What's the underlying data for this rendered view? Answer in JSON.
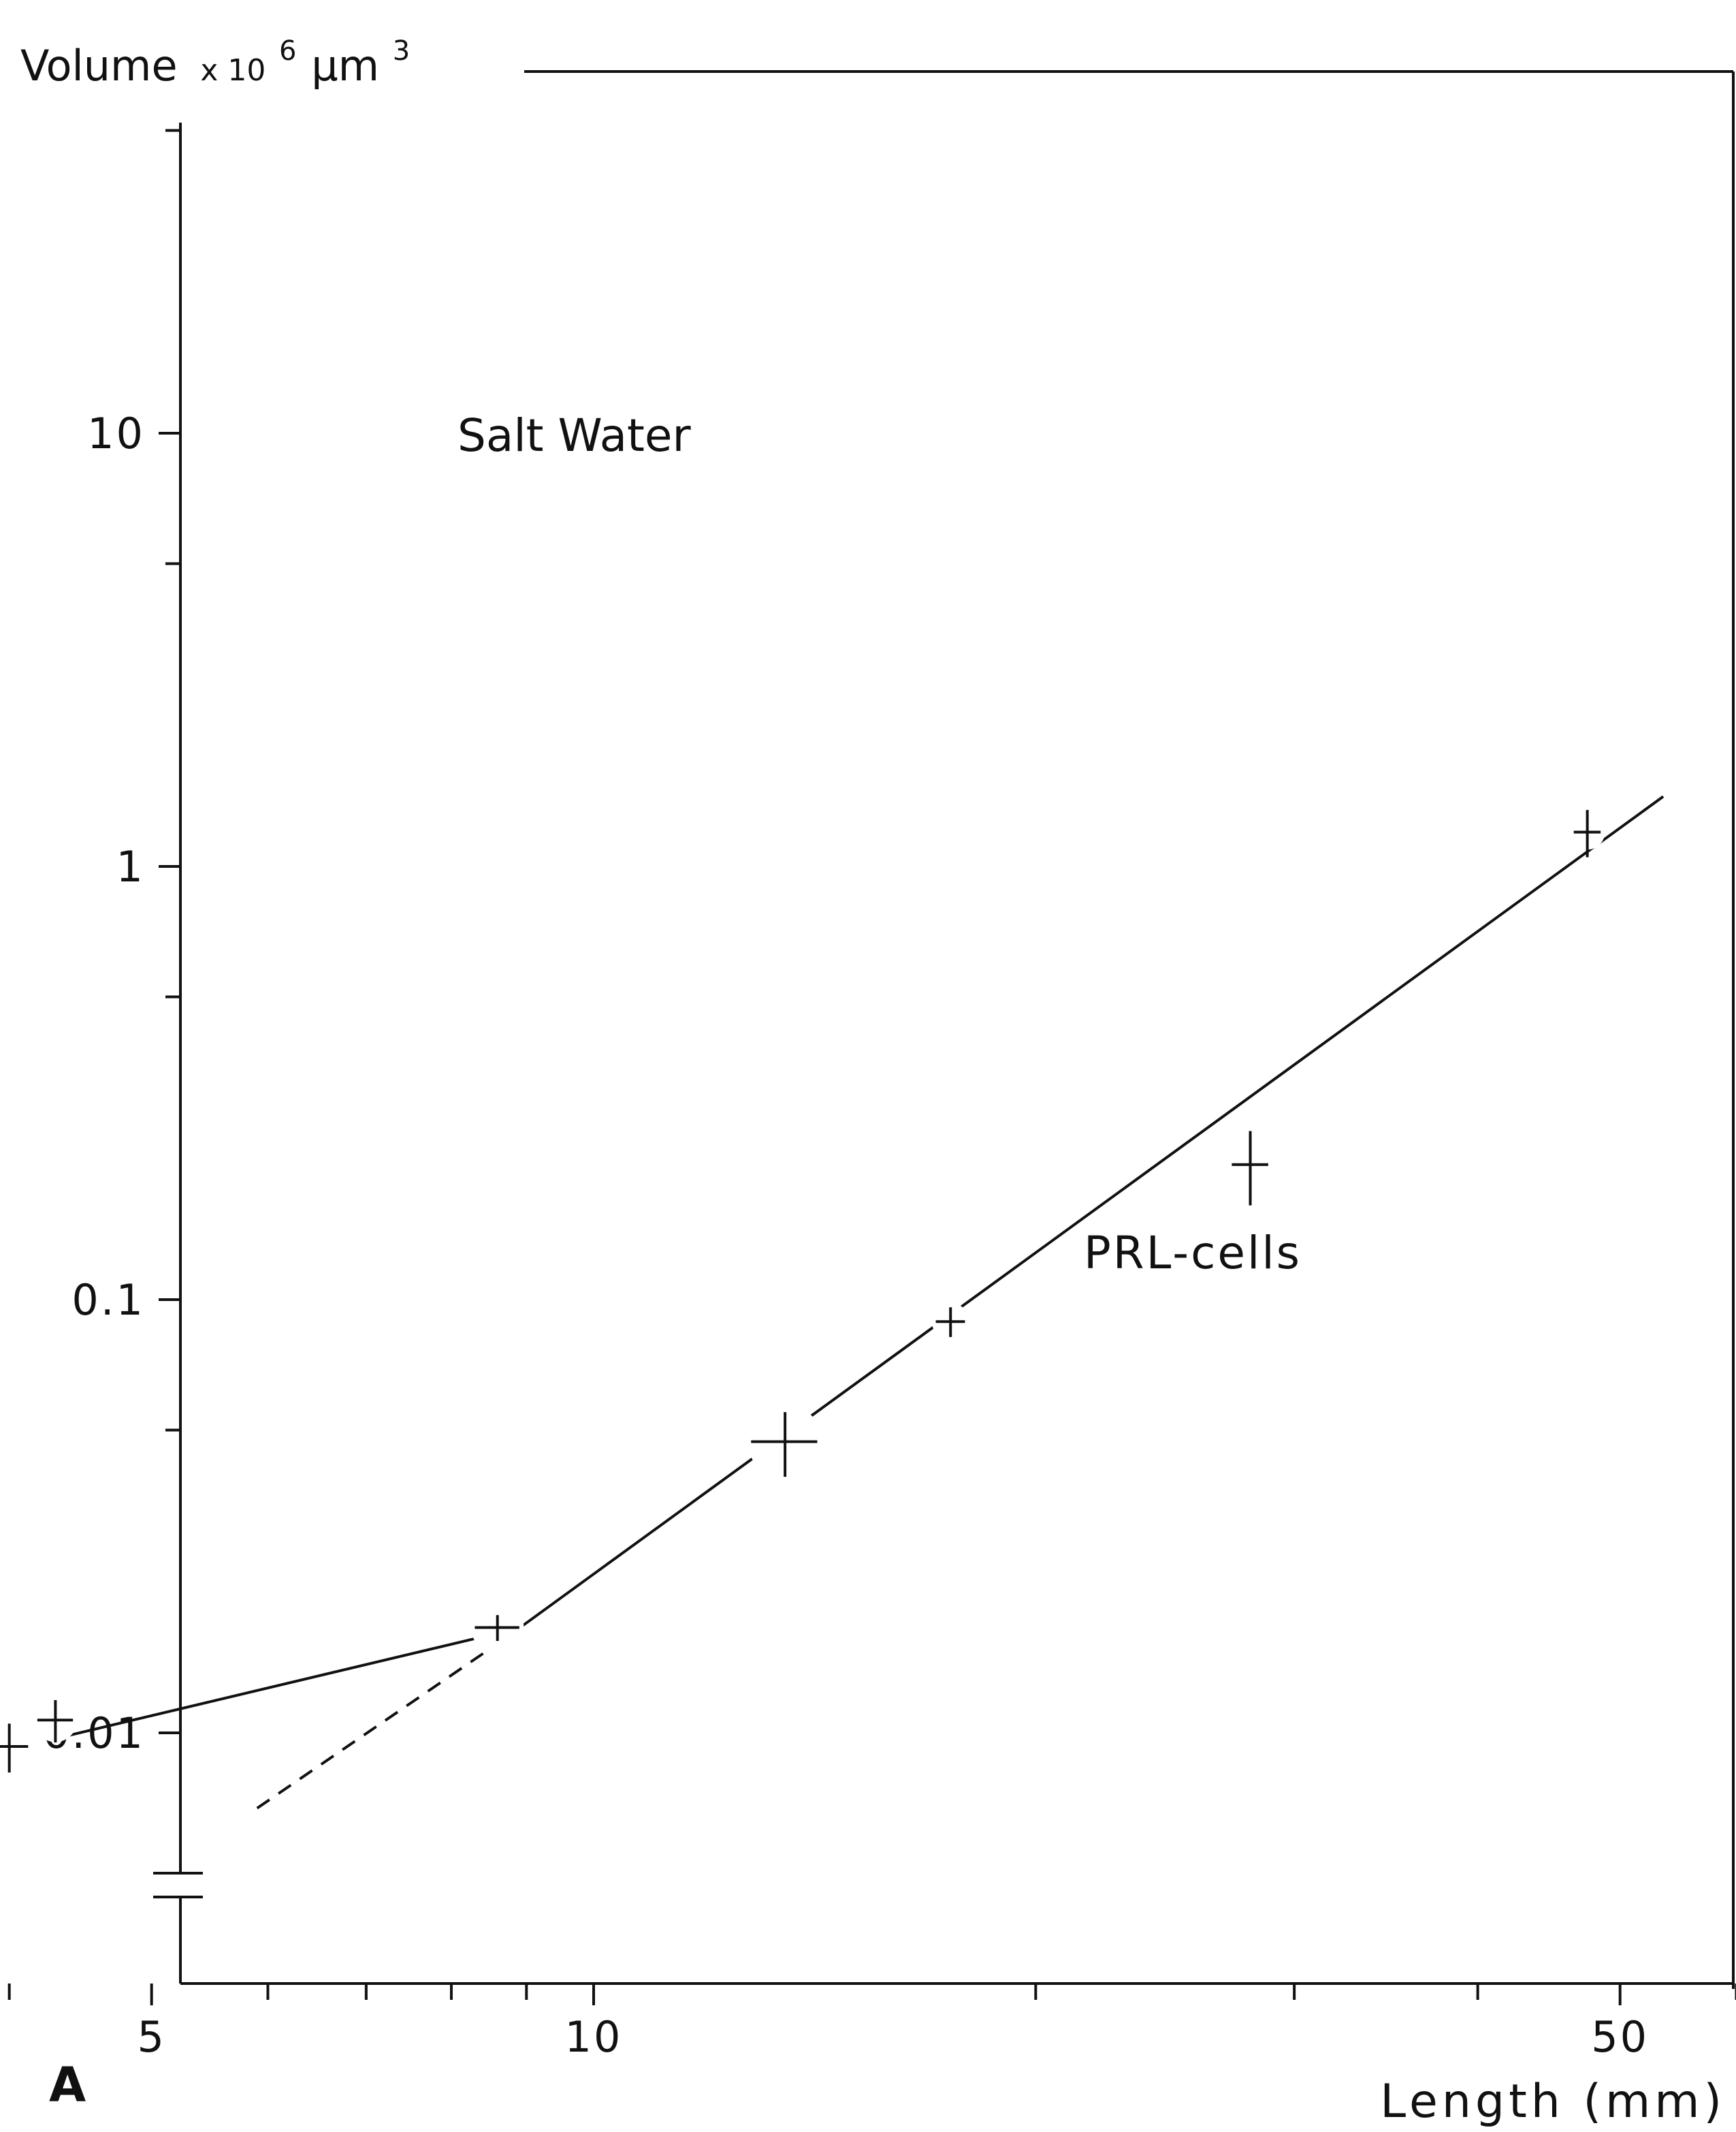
{
  "figure": {
    "panel_letter": "A"
  },
  "chart_data": {
    "type": "scatter",
    "title": "",
    "ylabel": {
      "text": "Volume",
      "multiplier": "x 10",
      "exponent": "6",
      "unit": "μm",
      "unit_power": "3"
    },
    "xlabel": "Length (mm)",
    "x_scale": "log",
    "y_scale": "log",
    "xlim": [
      3.6,
      83
    ],
    "ylim": [
      0.0043,
      100
    ],
    "y_axis_break": true,
    "grid": false,
    "legend": "none",
    "x_tick_labels": [
      {
        "value": 5,
        "label": "5"
      },
      {
        "value": 10,
        "label": "10"
      },
      {
        "value": 50,
        "label": "50"
      }
    ],
    "x_minor_ticks": [
      4,
      6,
      7,
      8,
      9,
      20,
      30,
      40,
      60,
      70,
      80
    ],
    "y_tick_labels": [
      {
        "value": 10,
        "label": "10"
      },
      {
        "value": 1,
        "label": "1"
      },
      {
        "value": 0.1,
        "label": "0.1"
      },
      {
        "value": 0.01,
        "label": "0.01"
      }
    ],
    "y_minor_ticks": [
      50,
      5,
      0.5,
      0.05
    ],
    "annotations": [
      "Salt Water",
      "PRL-cells"
    ],
    "points": [
      {
        "x": 4.0,
        "y": 0.0093,
        "x_err": 0.12,
        "y_err": 0.0012
      },
      {
        "x": 4.3,
        "y": 0.0107,
        "x_err": 0.12,
        "y_err": 0.0012
      },
      {
        "x": 8.6,
        "y": 0.0175,
        "x_err": 0.3,
        "y_err": 0.0012
      },
      {
        "x": 13.5,
        "y": 0.047,
        "x_err": 0.7,
        "y_err": 0.008
      },
      {
        "x": 17.5,
        "y": 0.089,
        "x_err": 0.4,
        "y_err": 0.007
      },
      {
        "x": 28.0,
        "y": 0.205,
        "x_err": 0.8,
        "y_err": 0.04
      },
      {
        "x": 47.5,
        "y": 1.2,
        "x_err": 1.0,
        "y_err": 0.15
      }
    ],
    "lines": [
      {
        "name": "early-dashed",
        "style": "dashed",
        "points": [
          [
            3.65,
            0.0088
          ],
          [
            4.0,
            0.0093
          ]
        ]
      },
      {
        "name": "early-solid",
        "style": "solid",
        "points": [
          [
            4.3,
            0.0097
          ],
          [
            8.3,
            0.0165
          ]
        ]
      },
      {
        "name": "extrapolation",
        "style": "dashed",
        "points": [
          [
            5.9,
            0.0067
          ],
          [
            8.7,
            0.0165
          ]
        ]
      },
      {
        "name": "main-fit",
        "style": "solid",
        "points": [
          [
            8.7,
            0.0165
          ],
          [
            53.5,
            1.45
          ]
        ]
      }
    ]
  }
}
